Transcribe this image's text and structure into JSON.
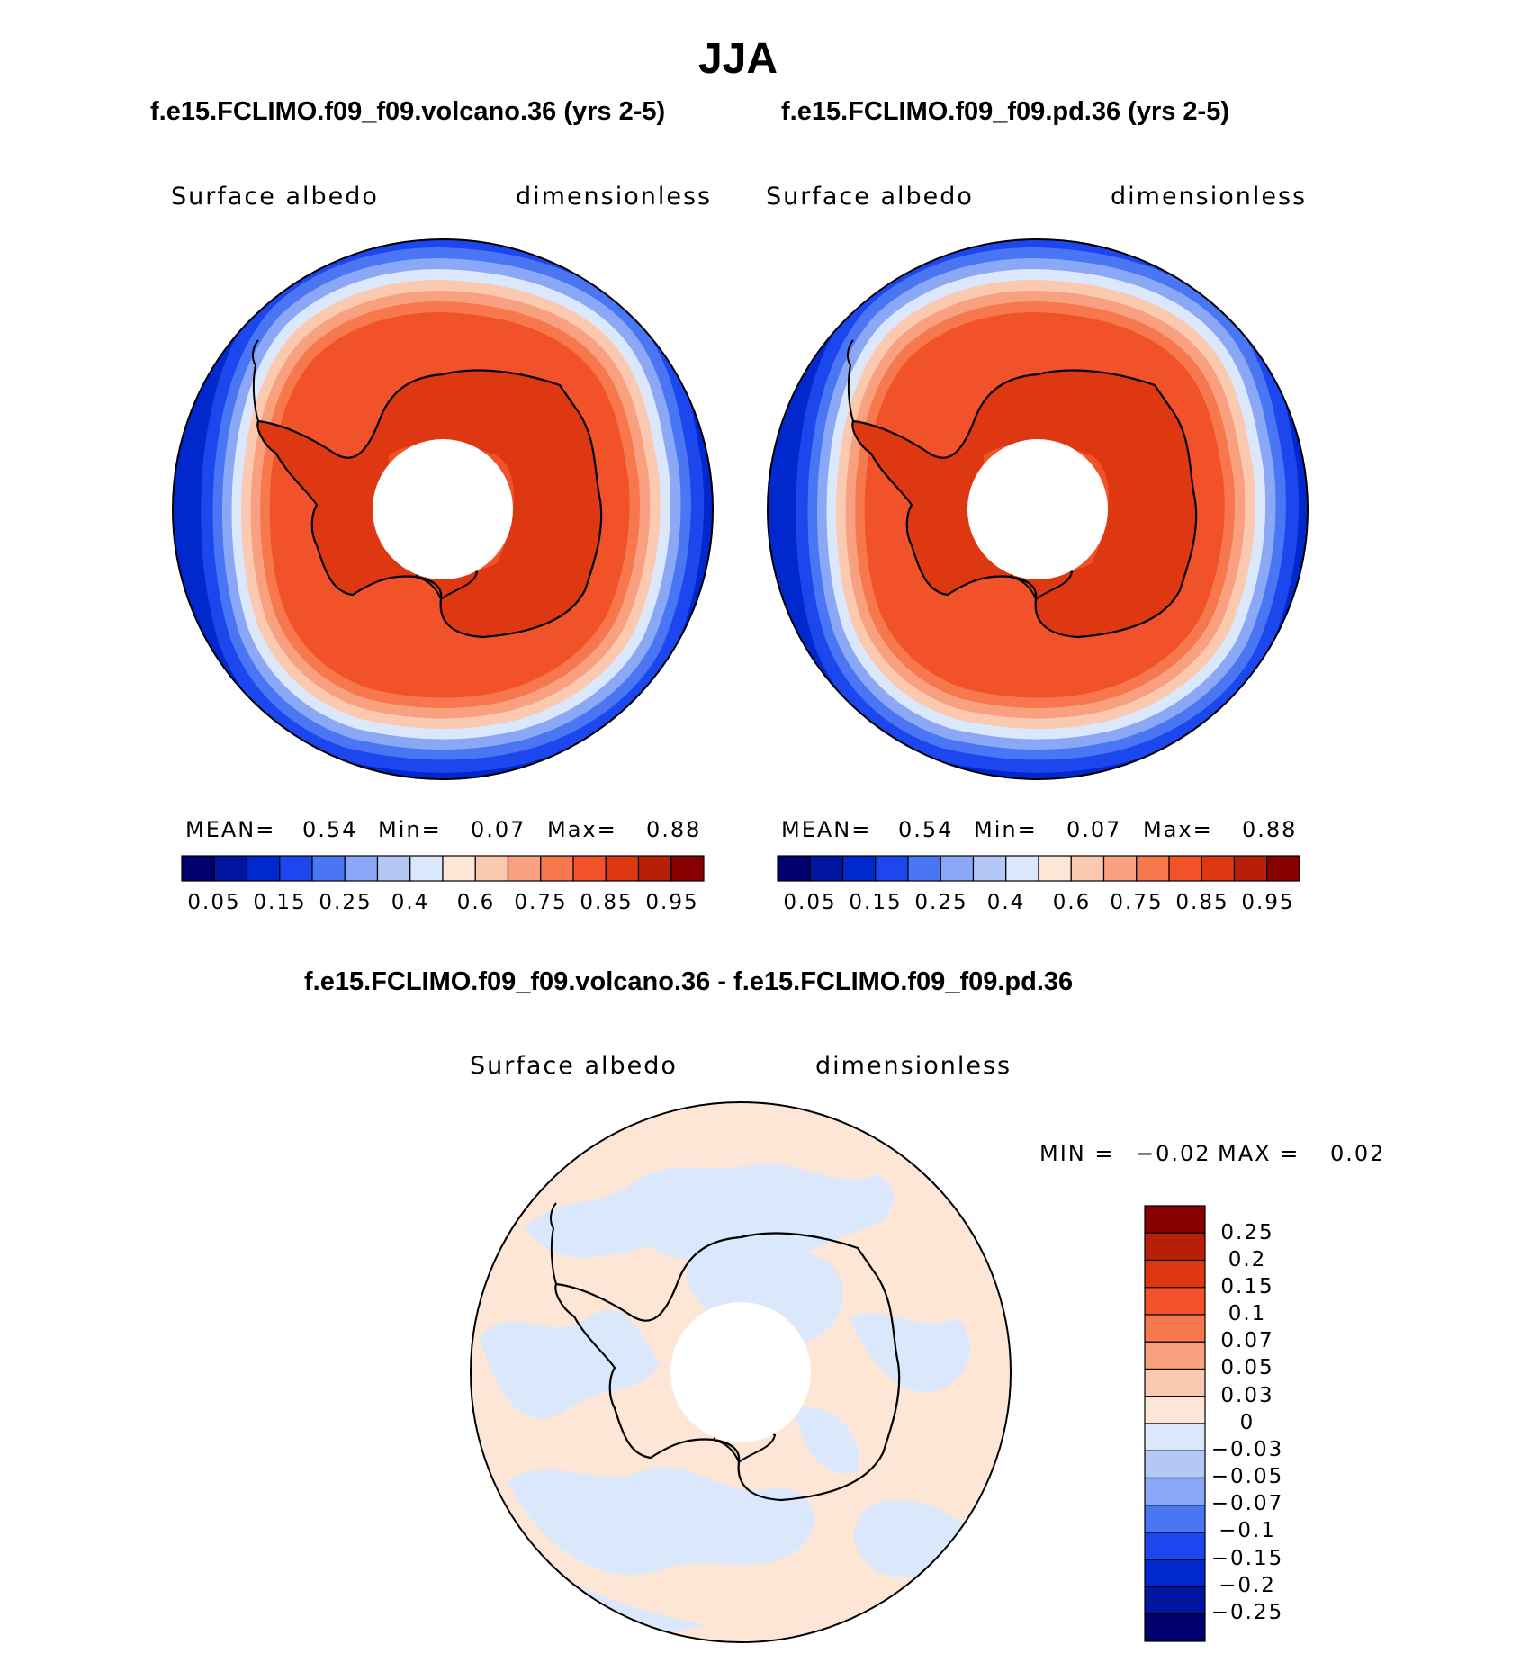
{
  "title": "JJA",
  "panels": [
    {
      "case": "f.e15.FCLIMO.f09_f09.volcano.36 (yrs 2-5)",
      "variable": "Surface albedo",
      "units": "dimensionless",
      "stats": {
        "mean_label": "MEAN=",
        "mean": "0.54",
        "min_label": "Min=",
        "min": "0.07",
        "max_label": "Max=",
        "max": "0.88"
      }
    },
    {
      "case": "f.e15.FCLIMO.f09_f09.pd.36 (yrs 2-5)",
      "variable": "Surface albedo",
      "units": "dimensionless",
      "stats": {
        "mean_label": "MEAN=",
        "mean": "0.54",
        "min_label": "Min=",
        "min": "0.07",
        "max_label": "Max=",
        "max": "0.88"
      }
    }
  ],
  "diff": {
    "title": "f.e15.FCLIMO.f09_f09.volcano.36 - f.e15.FCLIMO.f09_f09.pd.36",
    "variable": "Surface albedo",
    "units": "dimensionless",
    "minmax": {
      "min_label": "MIN =",
      "min": "−0.02",
      "max_label": "MAX =",
      "max": "0.02"
    }
  },
  "chart_data": [
    {
      "type": "heatmap",
      "projection": "south-polar-stereographic",
      "title": "f.e15.FCLIMO.f09_f09.volcano.36 (yrs 2-5)",
      "variable": "Surface albedo",
      "units": "dimensionless",
      "mean": 0.54,
      "min": 0.07,
      "max": 0.88,
      "levels": [
        0.05,
        0.1,
        0.15,
        0.2,
        0.25,
        0.3,
        0.4,
        0.5,
        0.6,
        0.7,
        0.75,
        0.8,
        0.85,
        0.9,
        0.95
      ],
      "colorbar_labels": [
        "0.05",
        "0.15",
        "0.25",
        "0.4",
        "0.6",
        "0.75",
        "0.85",
        "0.95"
      ],
      "colors": [
        "#00006e",
        "#0016a0",
        "#0028cc",
        "#1c46ee",
        "#4a76f4",
        "#8aa8f6",
        "#b4c8f8",
        "#dbe8fb",
        "#fde6d6",
        "#fbc8b0",
        "#f9a080",
        "#f6784c",
        "#f2522a",
        "#de3812",
        "#b81e08",
        "#860000"
      ]
    },
    {
      "type": "heatmap",
      "projection": "south-polar-stereographic",
      "title": "f.e15.FCLIMO.f09_f09.pd.36 (yrs 2-5)",
      "variable": "Surface albedo",
      "units": "dimensionless",
      "mean": 0.54,
      "min": 0.07,
      "max": 0.88,
      "levels": [
        0.05,
        0.1,
        0.15,
        0.2,
        0.25,
        0.3,
        0.4,
        0.5,
        0.6,
        0.7,
        0.75,
        0.8,
        0.85,
        0.9,
        0.95
      ],
      "colorbar_labels": [
        "0.05",
        "0.15",
        "0.25",
        "0.4",
        "0.6",
        "0.75",
        "0.85",
        "0.95"
      ],
      "colors": [
        "#00006e",
        "#0016a0",
        "#0028cc",
        "#1c46ee",
        "#4a76f4",
        "#8aa8f6",
        "#b4c8f8",
        "#dbe8fb",
        "#fde6d6",
        "#fbc8b0",
        "#f9a080",
        "#f6784c",
        "#f2522a",
        "#de3812",
        "#b81e08",
        "#860000"
      ]
    },
    {
      "type": "heatmap",
      "projection": "south-polar-stereographic",
      "title": "f.e15.FCLIMO.f09_f09.volcano.36 - f.e15.FCLIMO.f09_f09.pd.36",
      "variable": "Surface albedo",
      "units": "dimensionless",
      "min": -0.02,
      "max": 0.02,
      "levels": [
        -0.25,
        -0.2,
        -0.15,
        -0.1,
        -0.07,
        -0.05,
        -0.03,
        0,
        0.03,
        0.05,
        0.07,
        0.1,
        0.15,
        0.2,
        0.25
      ],
      "colorbar_labels": [
        "0.25",
        "0.2",
        "0.15",
        "0.1",
        "0.07",
        "0.05",
        "0.03",
        "0",
        "−0.03",
        "−0.05",
        "−0.07",
        "−0.1",
        "−0.15",
        "−0.2",
        "−0.25"
      ],
      "colors": [
        "#860000",
        "#b81e08",
        "#de3812",
        "#f2522a",
        "#f6784c",
        "#f9a080",
        "#fbc8b0",
        "#fde6d6",
        "#dbe8fb",
        "#b4c8f8",
        "#8aa8f6",
        "#4a76f4",
        "#1c46ee",
        "#0028cc",
        "#0016a0",
        "#00006e"
      ]
    }
  ]
}
